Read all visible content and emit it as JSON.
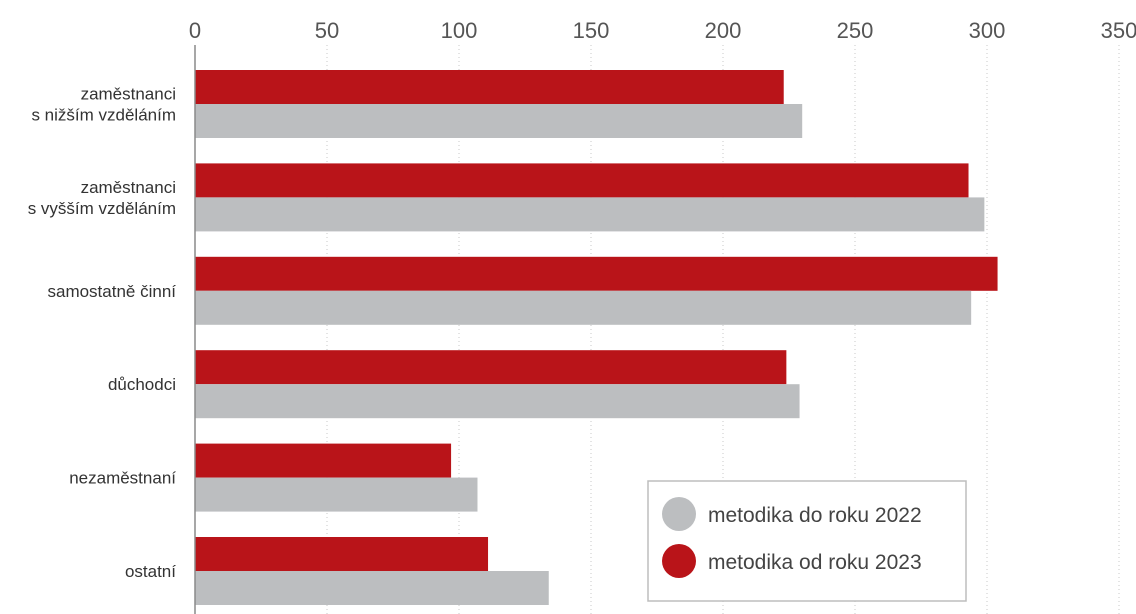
{
  "chart_data": {
    "type": "bar",
    "orientation": "horizontal",
    "title": "",
    "xlabel": "",
    "ylabel": "",
    "xlim": [
      0,
      350
    ],
    "x_ticks": [
      0,
      50,
      100,
      150,
      200,
      250,
      300,
      350
    ],
    "x_axis_position": "top",
    "grid": true,
    "legend_position": "bottom-right",
    "categories": [
      [
        "zaměstnanci",
        "s nižším vzděláním"
      ],
      [
        "zaměstnanci",
        "s vyšším vzděláním"
      ],
      [
        "samostatně činní"
      ],
      [
        "důchodci"
      ],
      [
        "nezaměstnaní"
      ],
      [
        "ostatní"
      ]
    ],
    "series": [
      {
        "name": "metodika od roku 2023",
        "color": "#b91419",
        "values": [
          223,
          293,
          304,
          224,
          97,
          111
        ]
      },
      {
        "name": "metodika do roku 2022",
        "color": "#bcbec0",
        "values": [
          230,
          299,
          294,
          229,
          107,
          134
        ]
      }
    ],
    "legend": [
      {
        "name": "metodika do roku 2022",
        "color": "#bcbec0"
      },
      {
        "name": "metodika od roku 2023",
        "color": "#b91419"
      }
    ]
  }
}
